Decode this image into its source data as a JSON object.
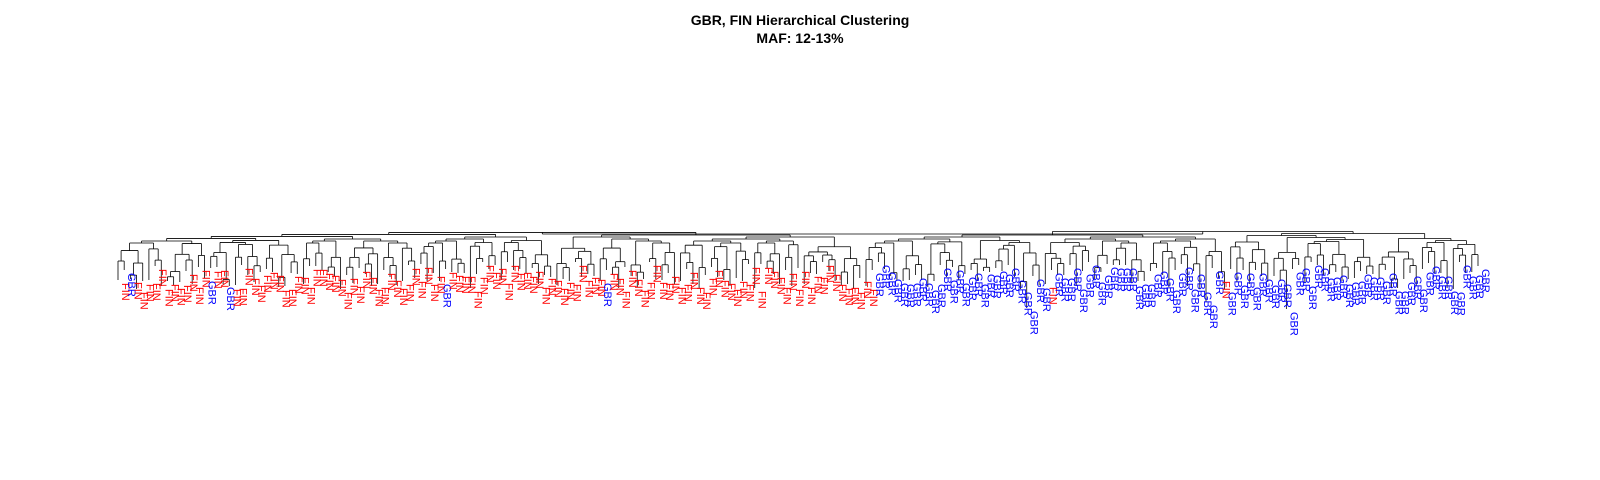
{
  "header": {
    "title": "GBR, FIN Hierarchical Clustering",
    "subtitle": "MAF: 12-13%"
  },
  "colors": {
    "GBR": "#0000ff",
    "FIN": "#ff0000",
    "branch": "#000000"
  },
  "chart_data": {
    "type": "dendrogram",
    "leaves": [
      "FIN",
      "GBR",
      "FIN",
      "FIN",
      "FIN",
      "FIN",
      "FIN",
      "FIN",
      "FIN",
      "FIN",
      "FIN",
      "FIN",
      "FIN",
      "FIN",
      "GBR",
      "FIN",
      "FIN",
      "GBR",
      "FIN",
      "FIN",
      "FIN",
      "FIN",
      "FIN",
      "FIN",
      "FIN",
      "FIN",
      "FIN",
      "FIN",
      "FIN",
      "FIN",
      "FIN",
      "FIN",
      "FIN",
      "FIN",
      "FIN",
      "FIN",
      "FIN",
      "FIN",
      "FIN",
      "FIN",
      "FIN",
      "FIN",
      "FIN",
      "FIN",
      "FIN",
      "FIN",
      "FIN",
      "FIN",
      "FIN",
      "FIN",
      "FIN",
      "FIN",
      "GBR",
      "FIN",
      "FIN",
      "FIN",
      "FIN",
      "FIN",
      "FIN",
      "FIN",
      "FIN",
      "FIN",
      "FIN",
      "FIN",
      "FIN",
      "FIN",
      "FIN",
      "FIN",
      "FIN",
      "FIN",
      "FIN",
      "FIN",
      "FIN",
      "FIN",
      "FIN",
      "FIN",
      "FIN",
      "FIN",
      "GBR",
      "FIN",
      "FIN",
      "FIN",
      "FIN",
      "FIN",
      "FIN",
      "FIN",
      "FIN",
      "FIN",
      "FIN",
      "FIN",
      "FIN",
      "FIN",
      "FIN",
      "FIN",
      "FIN",
      "FIN",
      "FIN",
      "FIN",
      "FIN",
      "FIN",
      "FIN",
      "FIN",
      "FIN",
      "FIN",
      "FIN",
      "FIN",
      "FIN",
      "FIN",
      "FIN",
      "FIN",
      "FIN",
      "FIN",
      "FIN",
      "FIN",
      "FIN",
      "FIN",
      "FIN",
      "FIN",
      "FIN",
      "FIN",
      "FIN",
      "FIN",
      "GBR",
      "GBR",
      "GBR",
      "GBR",
      "GBR",
      "GBR",
      "GBR",
      "GBR",
      "GBR",
      "GBR",
      "GBR",
      "GBR",
      "GBR",
      "GBR",
      "GBR",
      "GBR",
      "GBR",
      "GBR",
      "GBR",
      "GBR",
      "GBR",
      "GBR",
      "GBR",
      "GBR",
      "GBR",
      "GBR",
      "GBR",
      "GBR",
      "FIN",
      "GBR",
      "GBR",
      "GBR",
      "GBR",
      "GBR",
      "GBR",
      "GBR",
      "GBR",
      "GBR",
      "GBR",
      "GBR",
      "GBR",
      "GBR",
      "GBR",
      "GBR",
      "GBR",
      "GBR",
      "GBR",
      "GBR",
      "GBR",
      "GBR",
      "GBR",
      "GBR",
      "GBR",
      "GBR",
      "GBR",
      "GBR",
      "FIN",
      "GBR",
      "GBR",
      "GBR",
      "GBR",
      "GBR",
      "GBR",
      "GBR",
      "GBR",
      "GBR",
      "GBR",
      "GBR",
      "GBR",
      "GBR",
      "GBR",
      "GBR",
      "GBR",
      "GBR",
      "GBR",
      "GBR",
      "GBR",
      "GBR",
      "GBR",
      "GBR",
      "GBR",
      "GBR",
      "GBR",
      "GBR",
      "GBR",
      "GBR",
      "GBR",
      "GBR",
      "GBR",
      "GBR",
      "GBR",
      "GBR",
      "GBR",
      "GBR",
      "GBR",
      "GBR",
      "GBR",
      "GBR",
      "GBR"
    ]
  }
}
